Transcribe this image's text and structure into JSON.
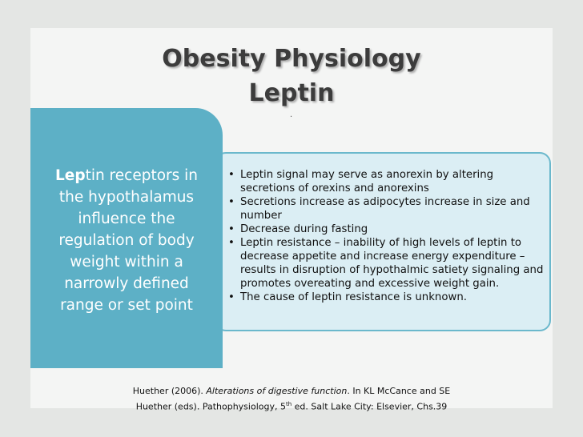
{
  "title": {
    "line1": "Obesity Physiology",
    "line2": "Leptin"
  },
  "dot": ".",
  "left_box": {
    "bold": "Lep",
    "lines": [
      "tin receptors in",
      "the hypothalamus",
      "influence the",
      "regulation of body",
      "weight within a",
      "narrowly defined",
      "range or set point"
    ]
  },
  "bullets": [
    "Leptin signal may serve as anorexin by altering secretions of orexins and anorexins",
    "Secretions increase as adipocytes increase in size and number",
    "Decrease during fasting",
    "Leptin resistance – inability of high levels of leptin to decrease appetite and increase energy expenditure – results in disruption of hypothalmic satiety signaling and promotes overeating and excessive weight gain.",
    "The cause of leptin resistance is unknown."
  ],
  "citation": {
    "part1": "Huether (2006).  ",
    "italic": "Alterations of digestive function",
    "part2": ". In KL McCance and SE Huether (eds). Pathophysiology, 5",
    "sup": "th",
    "part3": " ed. Salt Lake City: Elsevier, Chs.39"
  }
}
